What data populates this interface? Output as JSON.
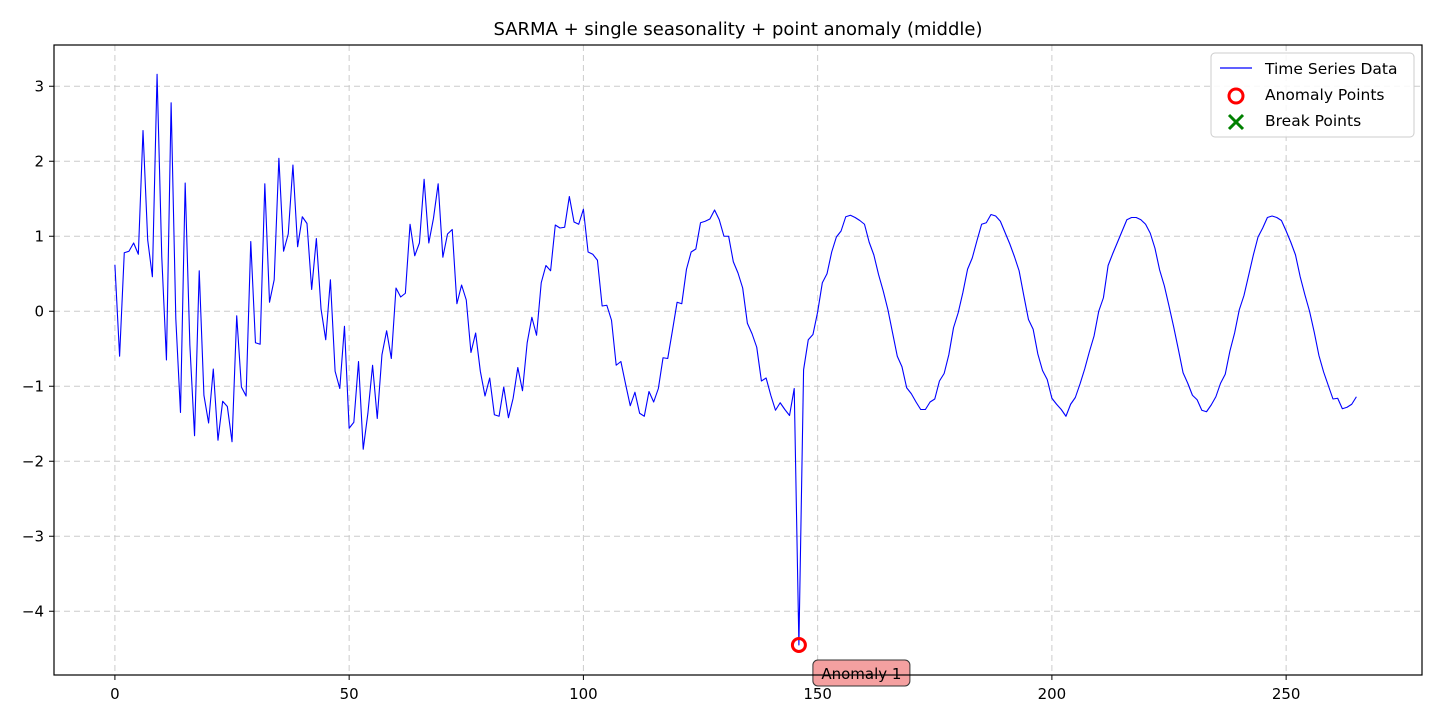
{
  "chart_data": {
    "type": "line",
    "title": "SARMA + single seasonality + point anomaly (middle)",
    "xlabel": "",
    "ylabel": "",
    "xlim": [
      -13,
      279
    ],
    "ylim": [
      -4.85,
      3.55
    ],
    "grid": true,
    "legend_position": "top-right",
    "x_ticks": [
      0,
      50,
      100,
      150,
      200,
      250
    ],
    "y_ticks": [
      3,
      2,
      1,
      0,
      -1,
      -2,
      -3,
      -4
    ],
    "x_tick_labels": [
      "0",
      "50",
      "100",
      "150",
      "200",
      "250"
    ],
    "y_tick_labels": [
      "3",
      "2",
      "1",
      "0",
      "−1",
      "−2",
      "−3",
      "−4"
    ],
    "series": [
      {
        "name": "Time Series Data",
        "color": "#0000ff",
        "x": [
          0,
          1,
          2,
          3,
          4,
          5,
          6,
          7,
          8,
          9,
          10,
          11,
          12,
          13,
          14,
          15,
          16,
          17,
          18,
          19,
          20,
          21,
          22,
          23,
          24,
          25,
          26,
          27,
          28,
          29,
          30,
          31,
          32,
          33,
          34,
          35,
          36,
          37,
          38,
          39,
          40,
          41,
          42,
          43,
          44,
          45,
          46,
          47,
          48,
          49,
          50,
          51,
          52,
          53,
          54,
          55,
          56,
          57,
          58,
          59,
          60,
          61,
          62,
          63,
          64,
          65,
          66,
          67,
          68,
          69,
          70,
          71,
          72,
          73,
          74,
          75,
          76,
          77,
          78,
          79,
          80,
          81,
          82,
          83,
          84,
          85,
          86,
          87,
          88,
          89,
          90,
          91,
          92,
          93,
          94,
          95,
          96,
          97,
          98,
          99,
          100,
          101,
          102,
          103,
          104,
          105,
          106,
          107,
          108,
          109,
          110,
          111,
          112,
          113,
          114,
          115,
          116,
          117,
          118,
          119,
          120,
          121,
          122,
          123,
          124,
          125,
          126,
          127,
          128,
          129,
          130,
          131,
          132,
          133,
          134,
          135,
          136,
          137,
          138,
          139,
          140,
          141,
          142,
          143,
          144,
          145,
          146,
          147,
          148,
          149,
          150,
          151,
          152,
          153,
          154,
          155,
          156,
          157,
          158,
          159,
          160,
          161,
          162,
          163,
          164,
          165,
          166,
          167,
          168,
          169,
          170,
          171,
          172,
          173,
          174,
          175,
          176,
          177,
          178,
          179,
          180,
          181,
          182,
          183,
          184,
          185,
          186,
          187,
          188,
          189,
          190,
          191,
          192,
          193,
          194,
          195,
          196,
          197,
          198,
          199,
          200,
          201,
          202,
          203,
          204,
          205,
          206,
          207,
          208,
          209,
          210,
          211,
          212,
          213,
          214,
          215,
          216,
          217,
          218,
          219,
          220,
          221,
          222,
          223,
          224,
          225,
          226,
          227,
          228,
          229,
          230,
          231,
          232,
          233,
          234,
          235,
          236,
          237,
          238,
          239,
          240,
          241,
          242,
          243,
          244,
          245,
          246,
          247,
          248,
          249,
          250,
          251,
          252,
          253,
          254,
          255,
          256,
          257,
          258,
          259,
          260,
          261,
          262,
          263,
          264,
          265
        ],
        "y": [
          0.62,
          -0.6,
          0.78,
          0.8,
          0.91,
          0.76,
          2.41,
          0.95,
          0.46,
          3.16,
          0.73,
          -0.65,
          2.78,
          -0.1,
          -1.35,
          1.71,
          -0.45,
          -1.66,
          0.54,
          -1.12,
          -1.49,
          -0.77,
          -1.72,
          -1.2,
          -1.27,
          -1.74,
          -0.06,
          -1.01,
          -1.13,
          0.93,
          -0.42,
          -0.44,
          1.7,
          0.12,
          0.42,
          2.04,
          0.8,
          1.03,
          1.95,
          0.86,
          1.26,
          1.17,
          0.29,
          0.97,
          0.03,
          -0.38,
          0.42,
          -0.8,
          -1.03,
          -0.2,
          -1.56,
          -1.48,
          -0.67,
          -1.84,
          -1.36,
          -0.72,
          -1.43,
          -0.58,
          -0.26,
          -0.63,
          0.31,
          0.19,
          0.24,
          1.16,
          0.74,
          0.91,
          1.76,
          0.91,
          1.24,
          1.7,
          0.72,
          1.03,
          1.09,
          0.1,
          0.35,
          0.15,
          -0.55,
          -0.29,
          -0.8,
          -1.13,
          -0.89,
          -1.38,
          -1.4,
          -1.01,
          -1.42,
          -1.16,
          -0.75,
          -1.06,
          -0.42,
          -0.08,
          -0.32,
          0.38,
          0.61,
          0.54,
          1.15,
          1.11,
          1.12,
          1.53,
          1.19,
          1.16,
          1.36,
          0.79,
          0.76,
          0.68,
          0.07,
          0.08,
          -0.12,
          -0.72,
          -0.67,
          -0.97,
          -1.26,
          -1.08,
          -1.36,
          -1.4,
          -1.07,
          -1.21,
          -1.03,
          -0.62,
          -0.63,
          -0.26,
          0.12,
          0.1,
          0.56,
          0.79,
          0.83,
          1.18,
          1.2,
          1.23,
          1.35,
          1.22,
          1.0,
          1.0,
          0.66,
          0.51,
          0.31,
          -0.16,
          -0.3,
          -0.48,
          -0.93,
          -0.89,
          -1.12,
          -1.32,
          -1.22,
          -1.31,
          -1.39,
          -1.03,
          -4.45,
          -0.78,
          -0.38,
          -0.31,
          -0.01,
          0.38,
          0.5,
          0.79,
          0.99,
          1.07,
          1.26,
          1.28,
          1.25,
          1.21,
          1.16,
          0.92,
          0.75,
          0.49,
          0.27,
          0.02,
          -0.29,
          -0.6,
          -0.74,
          -1.02,
          -1.1,
          -1.21,
          -1.31,
          -1.31,
          -1.21,
          -1.17,
          -0.93,
          -0.83,
          -0.58,
          -0.22,
          -0.02,
          0.25,
          0.56,
          0.71,
          0.94,
          1.16,
          1.18,
          1.29,
          1.27,
          1.2,
          1.05,
          0.9,
          0.73,
          0.54,
          0.21,
          -0.11,
          -0.24,
          -0.57,
          -0.79,
          -0.91,
          -1.16,
          -1.24,
          -1.31,
          -1.4,
          -1.24,
          -1.15,
          -0.97,
          -0.77,
          -0.54,
          -0.33,
          0.0,
          0.18,
          0.61,
          0.77,
          0.92,
          1.07,
          1.22,
          1.25,
          1.25,
          1.22,
          1.16,
          1.04,
          0.84,
          0.55,
          0.34,
          0.07,
          -0.21,
          -0.51,
          -0.82,
          -0.96,
          -1.12,
          -1.18,
          -1.32,
          -1.34,
          -1.25,
          -1.14,
          -0.96,
          -0.84,
          -0.53,
          -0.29,
          0.02,
          0.21,
          0.48,
          0.75,
          0.99,
          1.11,
          1.25,
          1.27,
          1.25,
          1.21,
          1.07,
          0.92,
          0.75,
          0.46,
          0.22,
          0.0,
          -0.28,
          -0.59,
          -0.81,
          -0.99,
          -1.17,
          -1.16,
          -1.3,
          -1.28,
          -1.24,
          -1.14
        ]
      }
    ],
    "anomaly_points": [
      {
        "name": "Anomaly Points",
        "x": 146,
        "y": -4.45,
        "label": "Anomaly 1"
      }
    ],
    "break_points": []
  },
  "legend": {
    "items": [
      {
        "label": "Time Series Data",
        "marker": "line",
        "color": "#0000ff"
      },
      {
        "label": "Anomaly Points",
        "marker": "circle",
        "color": "#ff0000"
      },
      {
        "label": "Break Points",
        "marker": "x",
        "color": "#008000"
      }
    ]
  },
  "colors": {
    "line": "#0000ff",
    "anomaly": "#ff0000",
    "break": "#008000",
    "grid": "#cccccc",
    "annotation_fill": "#f4a0a0"
  }
}
